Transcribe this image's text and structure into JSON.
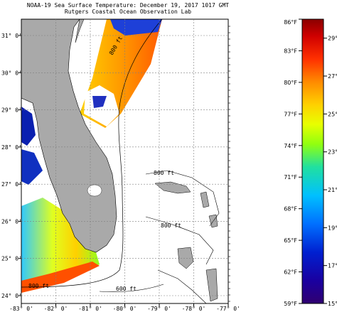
{
  "title_line1": "NOAA-19 Sea Surface Temperature:  December 19, 2017 1017 GMT",
  "title_line2": "Rutgers Coastal Ocean Observation Lab",
  "lat_labels": [
    "31° 0'",
    "30° 0'",
    "29° 0'",
    "28° 0'",
    "27° 0'",
    "26° 0'",
    "25° 0'",
    "24° 0'"
  ],
  "lon_labels": [
    "-83° 0'",
    "-82° 0'",
    "-81° 0'",
    "-80° 0'",
    "-79° 0'",
    "-78° 0'",
    "-77° 0'"
  ],
  "contour_labels": [
    "800 ft",
    "800 ft",
    "800 ft",
    "800 ft",
    "600 ft"
  ],
  "colorbar": {
    "f_labels": [
      "86°F",
      "83°F",
      "80°F",
      "77°F",
      "74°F",
      "71°F",
      "68°F",
      "65°F",
      "62°F",
      "59°F"
    ],
    "c_labels": [
      "29°C",
      "27°C",
      "25°C",
      "23°C",
      "21°C",
      "19°C",
      "17°C",
      "15°C"
    ],
    "range_f": [
      59,
      86
    ],
    "colors": [
      "#8a0000",
      "#d00000",
      "#ff3000",
      "#ff8a00",
      "#ffd000",
      "#e8ff00",
      "#90ff10",
      "#20e0a0",
      "#00c0ff",
      "#0070ff",
      "#0020d0",
      "#1a00a0",
      "#300070"
    ]
  },
  "colors": {
    "land": "#a9a9a9",
    "water": "#ffffff",
    "grid": "#808080"
  }
}
